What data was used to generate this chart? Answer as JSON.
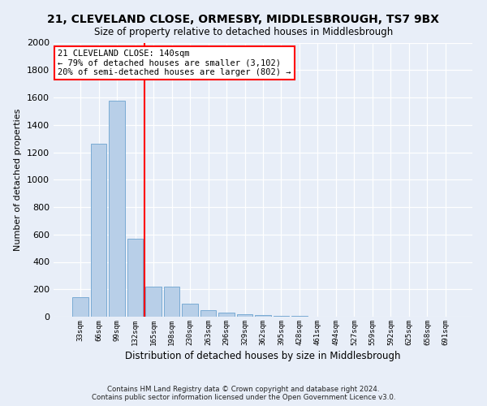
{
  "title": "21, CLEVELAND CLOSE, ORMESBY, MIDDLESBROUGH, TS7 9BX",
  "subtitle": "Size of property relative to detached houses in Middlesbrough",
  "xlabel": "Distribution of detached houses by size in Middlesbrough",
  "ylabel": "Number of detached properties",
  "bar_color": "#b8cfe8",
  "bar_edge_color": "#7aabd4",
  "bg_color": "#e8eef8",
  "categories": [
    "33sqm",
    "66sqm",
    "99sqm",
    "132sqm",
    "165sqm",
    "198sqm",
    "230sqm",
    "263sqm",
    "296sqm",
    "329sqm",
    "362sqm",
    "395sqm",
    "428sqm",
    "461sqm",
    "494sqm",
    "527sqm",
    "559sqm",
    "592sqm",
    "625sqm",
    "658sqm",
    "691sqm"
  ],
  "values": [
    140,
    1265,
    1575,
    570,
    220,
    220,
    95,
    50,
    28,
    18,
    10,
    5,
    3,
    0,
    0,
    0,
    0,
    0,
    0,
    0,
    0
  ],
  "ylim": [
    0,
    2000
  ],
  "yticks": [
    0,
    200,
    400,
    600,
    800,
    1000,
    1200,
    1400,
    1600,
    1800,
    2000
  ],
  "vline_index": 3,
  "annotation_title": "21 CLEVELAND CLOSE: 140sqm",
  "annotation_line1": "← 79% of detached houses are smaller (3,102)",
  "annotation_line2": "20% of semi-detached houses are larger (802) →",
  "footnote1": "Contains HM Land Registry data © Crown copyright and database right 2024.",
  "footnote2": "Contains public sector information licensed under the Open Government Licence v3.0."
}
